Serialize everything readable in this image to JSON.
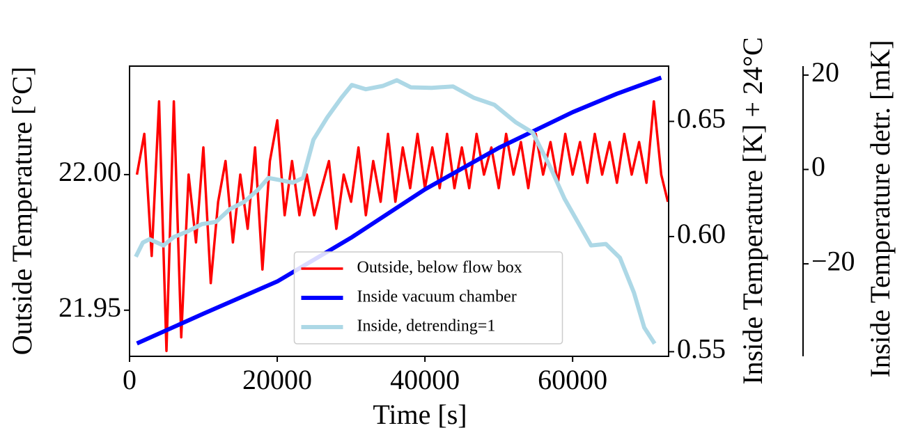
{
  "chart_data": {
    "type": "line",
    "xlabel": "Time [s]",
    "ylabel": "Outside Temperature [°C]",
    "y2label": "Inside Temperature [K] + 24°C",
    "y3label": "Inside Temperature detr. [mK]",
    "xlim": [
      0,
      73000
    ],
    "xticks": [
      0,
      20000,
      40000,
      60000
    ],
    "ylim": [
      21.933,
      22.04
    ],
    "yticks": [
      {
        "value": 21.95,
        "label": "21.95"
      },
      {
        "value": 22.0,
        "label": "22.00"
      }
    ],
    "y2lim": [
      0.548,
      0.674
    ],
    "y2ticks": [
      0.55,
      {
        "value": 0.6,
        "label": "0.60"
      },
      0.65
    ],
    "y3lim": [
      -39.6,
      21.9
    ],
    "y3ticks": [
      {
        "value": -20,
        "label": "−20"
      },
      0,
      20
    ],
    "legend": "lower center",
    "series": [
      {
        "name": "Outside, below flow box",
        "color": "#ff0000",
        "axis": "y",
        "x": [
          1000,
          2000,
          3000,
          4000,
          5000,
          6000,
          7000,
          8000,
          9000,
          10000,
          11000,
          12000,
          13000,
          14000,
          15000,
          16000,
          17000,
          18000,
          19000,
          20000,
          21000,
          22000,
          23000,
          24000,
          25000,
          26000,
          27000,
          28000,
          29000,
          30000,
          31000,
          32000,
          33000,
          34000,
          35000,
          36000,
          37000,
          38000,
          39000,
          40000,
          41000,
          42000,
          43000,
          44000,
          45000,
          46000,
          47000,
          48000,
          49000,
          50000,
          51000,
          52000,
          53000,
          54000,
          55000,
          56000,
          57000,
          58000,
          59000,
          60000,
          61000,
          62000,
          63000,
          64000,
          65000,
          66000,
          67000,
          68000,
          69000,
          70000,
          71000,
          72000,
          72900
        ],
        "values": [
          22.0,
          22.015,
          21.97,
          22.027,
          21.935,
          22.027,
          21.94,
          22.0,
          21.975,
          22.01,
          21.96,
          21.99,
          22.005,
          21.975,
          22.0,
          21.98,
          22.01,
          21.965,
          22.005,
          22.02,
          21.985,
          22.005,
          21.985,
          22.0,
          21.985,
          21.995,
          22.005,
          21.98,
          22.0,
          21.99,
          22.01,
          21.985,
          22.005,
          21.99,
          22.015,
          21.99,
          22.01,
          21.995,
          22.015,
          21.995,
          22.01,
          21.995,
          22.015,
          21.995,
          22.01,
          21.995,
          22.015,
          22.0,
          22.01,
          21.995,
          22.015,
          22.0,
          22.012,
          21.995,
          22.015,
          22.0,
          22.012,
          21.997,
          22.015,
          22.0,
          22.012,
          21.997,
          22.015,
          22.0,
          22.012,
          21.997,
          22.015,
          22.0,
          22.012,
          21.997,
          22.027,
          22.0,
          21.99
        ]
      },
      {
        "name": "Inside vacuum chamber",
        "color": "#0000ff",
        "axis": "y2",
        "x": [
          1000,
          10000,
          20000,
          30000,
          40000,
          50000,
          60000,
          66000,
          72000
        ],
        "values": [
          0.5536,
          0.5665,
          0.5805,
          0.5995,
          0.6205,
          0.6385,
          0.654,
          0.662,
          0.669
        ]
      },
      {
        "name": "Inside, detrending=1",
        "color": "#add8e6",
        "axis": "y3",
        "x": [
          849,
          1800,
          2700,
          4600,
          6000,
          7900,
          9800,
          11700,
          13600,
          15500,
          17400,
          18800,
          20200,
          22100,
          23500,
          24900,
          26800,
          28700,
          30100,
          32000,
          34300,
          36200,
          38100,
          40900,
          43800,
          46600,
          49400,
          52300,
          54600,
          57000,
          58900,
          60800,
          62500,
          64500,
          66400,
          68300,
          69700,
          71100
        ],
        "values": [
          -18.5,
          -15.5,
          -14.8,
          -16.1,
          -14.3,
          -13.1,
          -11.6,
          -11.1,
          -8.4,
          -6.9,
          -4.3,
          -1.8,
          -2.2,
          -2.8,
          -1.8,
          6.3,
          11.1,
          15.2,
          17.9,
          17.0,
          17.7,
          18.9,
          17.4,
          17.3,
          17.6,
          15.2,
          13.7,
          10.0,
          7.8,
          0.4,
          -6.2,
          -11.4,
          -16.1,
          -15.8,
          -18.7,
          -26.1,
          -33.5,
          -36.9
        ]
      }
    ]
  }
}
